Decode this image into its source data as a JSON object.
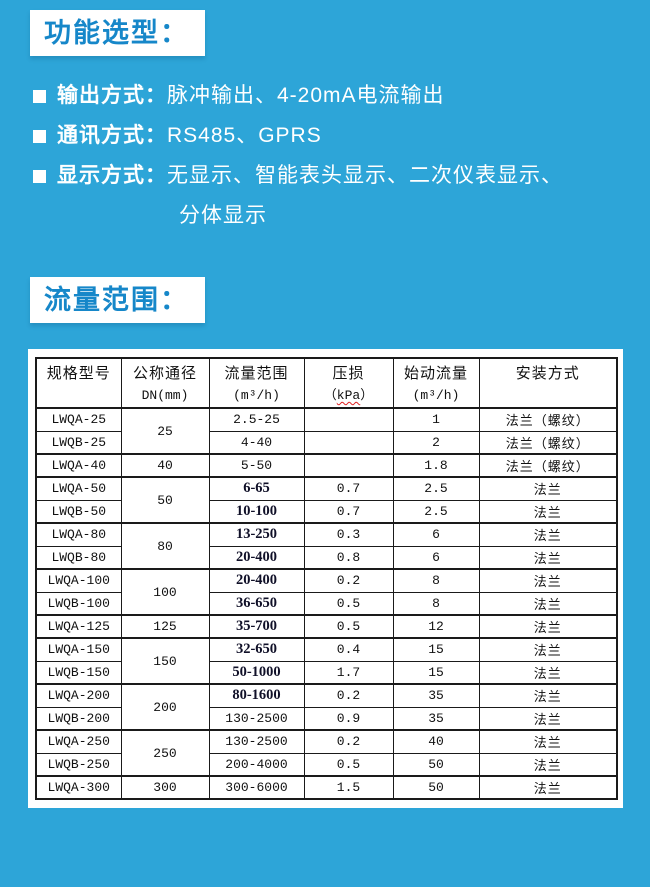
{
  "colors": {
    "background_blue": "#2da5d8",
    "accent_blue": "#1687c9",
    "table_border": "#1a1a1a",
    "squiggle_red": "#e02020"
  },
  "sections": {
    "features": {
      "title": "功能选型：",
      "bullets": [
        {
          "label": "输出方式：",
          "value": "脉冲输出、4-20mA电流输出"
        },
        {
          "label": "通讯方式：",
          "value": "RS485、GPRS"
        },
        {
          "label": "显示方式：",
          "value": "无显示、智能表头显示、二次仪表显示、",
          "value_line2": "分体显示"
        }
      ]
    },
    "flow_range": {
      "title": "流量范围：",
      "table": {
        "columns": [
          {
            "title": "规格型号",
            "unit": ""
          },
          {
            "title": "公称通径",
            "unit": "DN(mm)"
          },
          {
            "title": "流量范围",
            "unit": "(m³/h)"
          },
          {
            "title": "压损",
            "unit_open": "（",
            "unit_text": "kPa",
            "unit_close": "）"
          },
          {
            "title": "始动流量",
            "unit": "(m³/h)"
          },
          {
            "title": "安装方式",
            "unit": ""
          }
        ],
        "rows": [
          {
            "model": "LWQA-25",
            "dn": "25",
            "dn_span": 2,
            "flow": "2.5-25",
            "flow_style": "mono",
            "loss": "",
            "start": "1",
            "install": "法兰（螺纹）",
            "group_start": true
          },
          {
            "model": "LWQB-25",
            "flow": "4-40",
            "flow_style": "mono",
            "loss": "",
            "start": "2",
            "install": "法兰（螺纹）"
          },
          {
            "model": "LWQA-40",
            "dn": "40",
            "dn_span": 1,
            "flow": "5-50",
            "flow_style": "mono",
            "loss": "",
            "start": "1.8",
            "install": "法兰（螺纹）",
            "group_start": true
          },
          {
            "model": "LWQA-50",
            "dn": "50",
            "dn_span": 2,
            "flow": "6-65",
            "flow_style": "serif",
            "loss": "0.7",
            "start": "2.5",
            "install": "法兰",
            "group_start": true
          },
          {
            "model": "LWQB-50",
            "flow": "10-100",
            "flow_style": "serif",
            "loss": "0.7",
            "start": "2.5",
            "install": "法兰"
          },
          {
            "model": "LWQA-80",
            "dn": "80",
            "dn_span": 2,
            "flow": "13-250",
            "flow_style": "serif",
            "loss": "0.3",
            "start": "6",
            "install": "法兰",
            "group_start": true
          },
          {
            "model": "LWQB-80",
            "flow": "20-400",
            "flow_style": "serif",
            "loss": "0.8",
            "start": "6",
            "install": "法兰"
          },
          {
            "model": "LWQA-100",
            "dn": "100",
            "dn_span": 2,
            "flow": "20-400",
            "flow_style": "serif",
            "loss": "0.2",
            "start": "8",
            "install": "法兰",
            "group_start": true
          },
          {
            "model": "LWQB-100",
            "flow": "36-650",
            "flow_style": "serif",
            "loss": "0.5",
            "start": "8",
            "install": "法兰"
          },
          {
            "model": "LWQA-125",
            "dn": "125",
            "dn_span": 1,
            "flow": "35-700",
            "flow_style": "serif",
            "loss": "0.5",
            "start": "12",
            "install": "法兰",
            "group_start": true
          },
          {
            "model": "LWQA-150",
            "dn": "150",
            "dn_span": 2,
            "flow": "32-650",
            "flow_style": "serif",
            "loss": "0.4",
            "start": "15",
            "install": "法兰",
            "group_start": true
          },
          {
            "model": "LWQB-150",
            "flow": "50-1000",
            "flow_style": "serif",
            "loss": "1.7",
            "start": "15",
            "install": "法兰"
          },
          {
            "model": "LWQA-200",
            "dn": "200",
            "dn_span": 2,
            "flow": "80-1600",
            "flow_style": "serif",
            "loss": "0.2",
            "start": "35",
            "install": "法兰",
            "group_start": true
          },
          {
            "model": "LWQB-200",
            "flow": "130-2500",
            "flow_style": "mono",
            "loss": "0.9",
            "start": "35",
            "install": "法兰"
          },
          {
            "model": "LWQA-250",
            "dn": "250",
            "dn_span": 2,
            "flow": "130-2500",
            "flow_style": "mono",
            "loss": "0.2",
            "start": "40",
            "install": "法兰",
            "group_start": true
          },
          {
            "model": "LWQB-250",
            "flow": "200-4000",
            "flow_style": "mono",
            "loss": "0.5",
            "start": "50",
            "install": "法兰"
          },
          {
            "model": "LWQA-300",
            "dn": "300",
            "dn_span": 1,
            "flow": "300-6000",
            "flow_style": "mono",
            "loss": "1.5",
            "start": "50",
            "install": "法兰",
            "group_start": true
          }
        ]
      }
    }
  }
}
